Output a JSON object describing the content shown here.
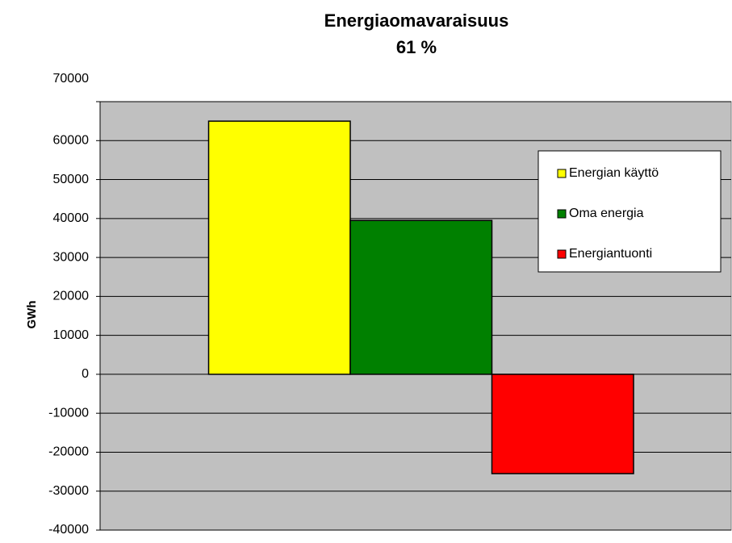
{
  "chart_data": {
    "type": "bar",
    "title": "Energiaomavaraisuus",
    "subtitle": "61 %",
    "y_label": "GWh",
    "series": [
      {
        "name": "Energian käyttö",
        "color": "#ffff00",
        "values": [
          65000
        ]
      },
      {
        "name": "Oma energia",
        "color": "#008000",
        "values": [
          39500
        ]
      },
      {
        "name": "Energiantuonti",
        "color": "#ff0000",
        "values": [
          -25500
        ]
      }
    ],
    "ylim": [
      -40000,
      70000
    ],
    "yticks": [
      -40000,
      -30000,
      -20000,
      -10000,
      0,
      10000,
      20000,
      30000,
      40000,
      50000,
      60000,
      70000
    ],
    "grid": true,
    "legend": "right"
  }
}
